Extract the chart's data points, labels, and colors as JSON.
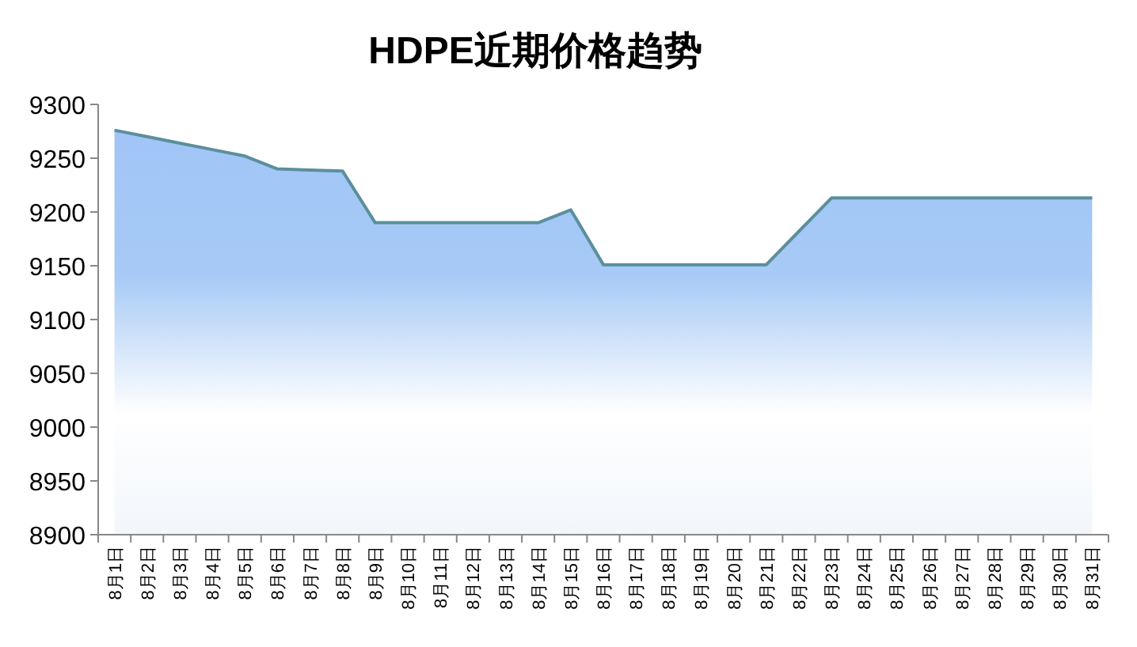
{
  "chart_data": {
    "type": "area",
    "title": "HDPE近期价格趋势",
    "categories": [
      "8月1日",
      "8月2日",
      "8月3日",
      "8月4日",
      "8月5日",
      "8月6日",
      "8月7日",
      "8月8日",
      "8月9日",
      "8月10日",
      "8月11日",
      "8月12日",
      "8月13日",
      "8月14日",
      "8月15日",
      "8月16日",
      "8月17日",
      "8月18日",
      "8月19日",
      "8月20日",
      "8月21日",
      "8月22日",
      "8月23日",
      "8月24日",
      "8月25日",
      "8月26日",
      "8月27日",
      "8月28日",
      "8月29日",
      "8月30日",
      "8月31日"
    ],
    "series": [
      {
        "color": "#5b8f9c",
        "values": [
          9276,
          9270,
          9264,
          9258,
          9252,
          9240,
          9239,
          9238,
          9190,
          9190,
          9190,
          9190,
          9190,
          9190,
          9202,
          9151,
          9151,
          9151,
          9151,
          9151,
          9151,
          9182,
          9213,
          9213,
          9213,
          9213,
          9213,
          9213,
          9213,
          9213,
          9213
        ]
      }
    ],
    "ylim": [
      8900,
      9300
    ],
    "yticks": [
      8900,
      8950,
      9000,
      9050,
      9100,
      9150,
      9200,
      9250,
      9300
    ],
    "grid": false
  }
}
